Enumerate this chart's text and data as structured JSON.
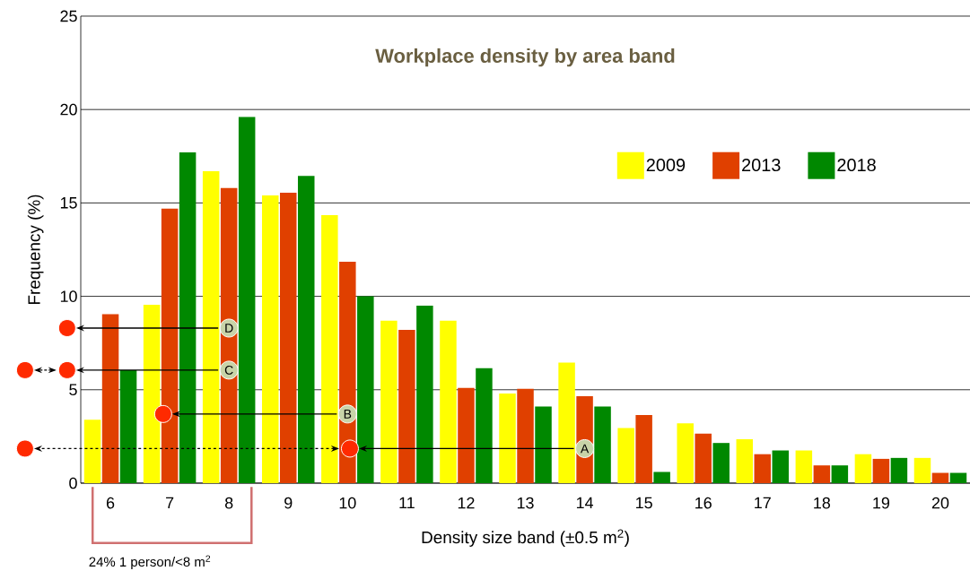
{
  "chart_data": {
    "type": "bar",
    "title": "Workplace density by area band",
    "xlabel": "Density size band (±0.5 m$^{2}$)",
    "ylabel": "Frequency (%)",
    "categories": [
      "6",
      "7",
      "8",
      "9",
      "10",
      "11",
      "12",
      "13",
      "14",
      "15",
      "16",
      "17",
      "18",
      "19",
      "20"
    ],
    "series": [
      {
        "name": "2009",
        "color": "#ffff00",
        "values": [
          3.4,
          9.55,
          16.7,
          15.4,
          14.35,
          8.7,
          8.7,
          4.8,
          6.45,
          2.95,
          3.2,
          2.35,
          1.75,
          1.55,
          1.35
        ]
      },
      {
        "name": "2013",
        "color": "#e04000",
        "values": [
          9.05,
          14.7,
          15.8,
          15.55,
          11.85,
          8.2,
          5.1,
          5.05,
          4.65,
          3.65,
          2.65,
          1.55,
          0.95,
          1.3,
          0.55
        ]
      },
      {
        "name": "2018",
        "color": "#008800",
        "values": [
          6.05,
          17.7,
          19.6,
          16.45,
          10.0,
          9.5,
          6.15,
          4.1,
          4.1,
          0.6,
          2.15,
          1.75,
          0.95,
          1.35,
          0.55
        ]
      }
    ],
    "ylim": [
      0,
      25
    ],
    "yticks": [
      0,
      5,
      10,
      15,
      20,
      25
    ],
    "grid": "y",
    "legend": "top right",
    "annotations": [
      {
        "text": "A",
        "x": "14",
        "y": 1.85
      },
      {
        "text": "B",
        "x": "10",
        "y": 3.7
      },
      {
        "text": "C",
        "x": "8",
        "y": 6.05
      },
      {
        "text": "D",
        "x": "8",
        "y": 8.3
      },
      "24%  1 person/<8 m$^{2}$"
    ]
  }
}
